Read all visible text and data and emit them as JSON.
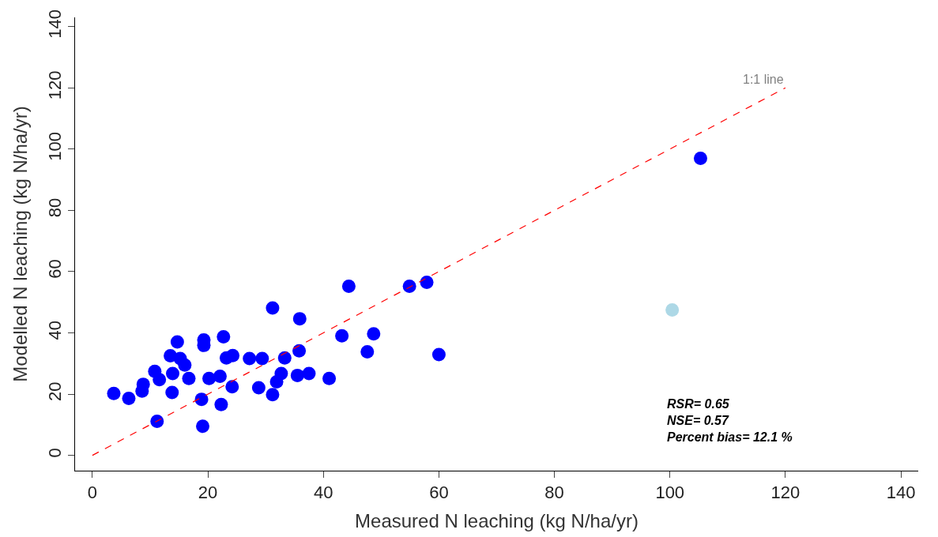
{
  "chart_data": {
    "type": "scatter",
    "xlabel": "Measured N leaching (kg N/ha/yr)",
    "ylabel": "Modelled N leaching (kg N/ha/yr)",
    "xlim": [
      -3,
      143
    ],
    "ylim": [
      -5,
      143
    ],
    "xticks": [
      0,
      20,
      40,
      60,
      80,
      100,
      120,
      140
    ],
    "yticks": [
      0,
      20,
      40,
      60,
      80,
      100,
      120,
      140
    ],
    "marker": "circle",
    "series": [
      {
        "color": "#0000ff",
        "x": [
          3.7,
          6.3,
          8.6,
          8.8,
          10.8,
          11.6,
          11.2,
          13.5,
          13.9,
          13.8,
          14.7,
          15.2,
          16.0,
          16.7,
          18.9,
          19.1,
          19.3,
          19.3,
          20.2,
          22.1,
          22.3,
          22.7,
          23.2,
          24.3,
          24.2,
          27.2,
          28.8,
          29.4,
          31.2,
          31.2,
          31.9,
          32.7,
          33.3,
          35.9,
          35.8,
          35.5,
          37.5,
          41.0,
          43.2,
          44.4,
          48.7,
          47.6,
          54.9,
          57.9,
          60.0,
          105.3
        ],
        "values": [
          20.2,
          18.6,
          21.0,
          23.2,
          27.4,
          24.7,
          11.1,
          32.5,
          26.7,
          20.5,
          37.0,
          31.6,
          29.5,
          25.1,
          18.3,
          9.5,
          37.7,
          35.9,
          25.1,
          25.8,
          16.6,
          38.7,
          31.8,
          32.6,
          22.4,
          31.6,
          22.1,
          31.6,
          48.1,
          19.8,
          24.0,
          26.7,
          31.8,
          44.6,
          34.1,
          26.1,
          26.7,
          25.1,
          39.0,
          55.2,
          39.7,
          33.8,
          55.2,
          56.5,
          32.9,
          97.0
        ]
      },
      {
        "color": "#add8e6",
        "x": [
          100.4
        ],
        "values": [
          47.5
        ]
      },
      {
        "type": "line",
        "color": "#ff0000",
        "line_style": "dashed",
        "marker": "none",
        "x": [
          0,
          120
        ],
        "values": [
          0,
          120
        ]
      }
    ],
    "annotations": [
      "1:1 line",
      "RSR= 0.65",
      "NSE= 0.57",
      "Percent bias= 12.1 %"
    ]
  }
}
